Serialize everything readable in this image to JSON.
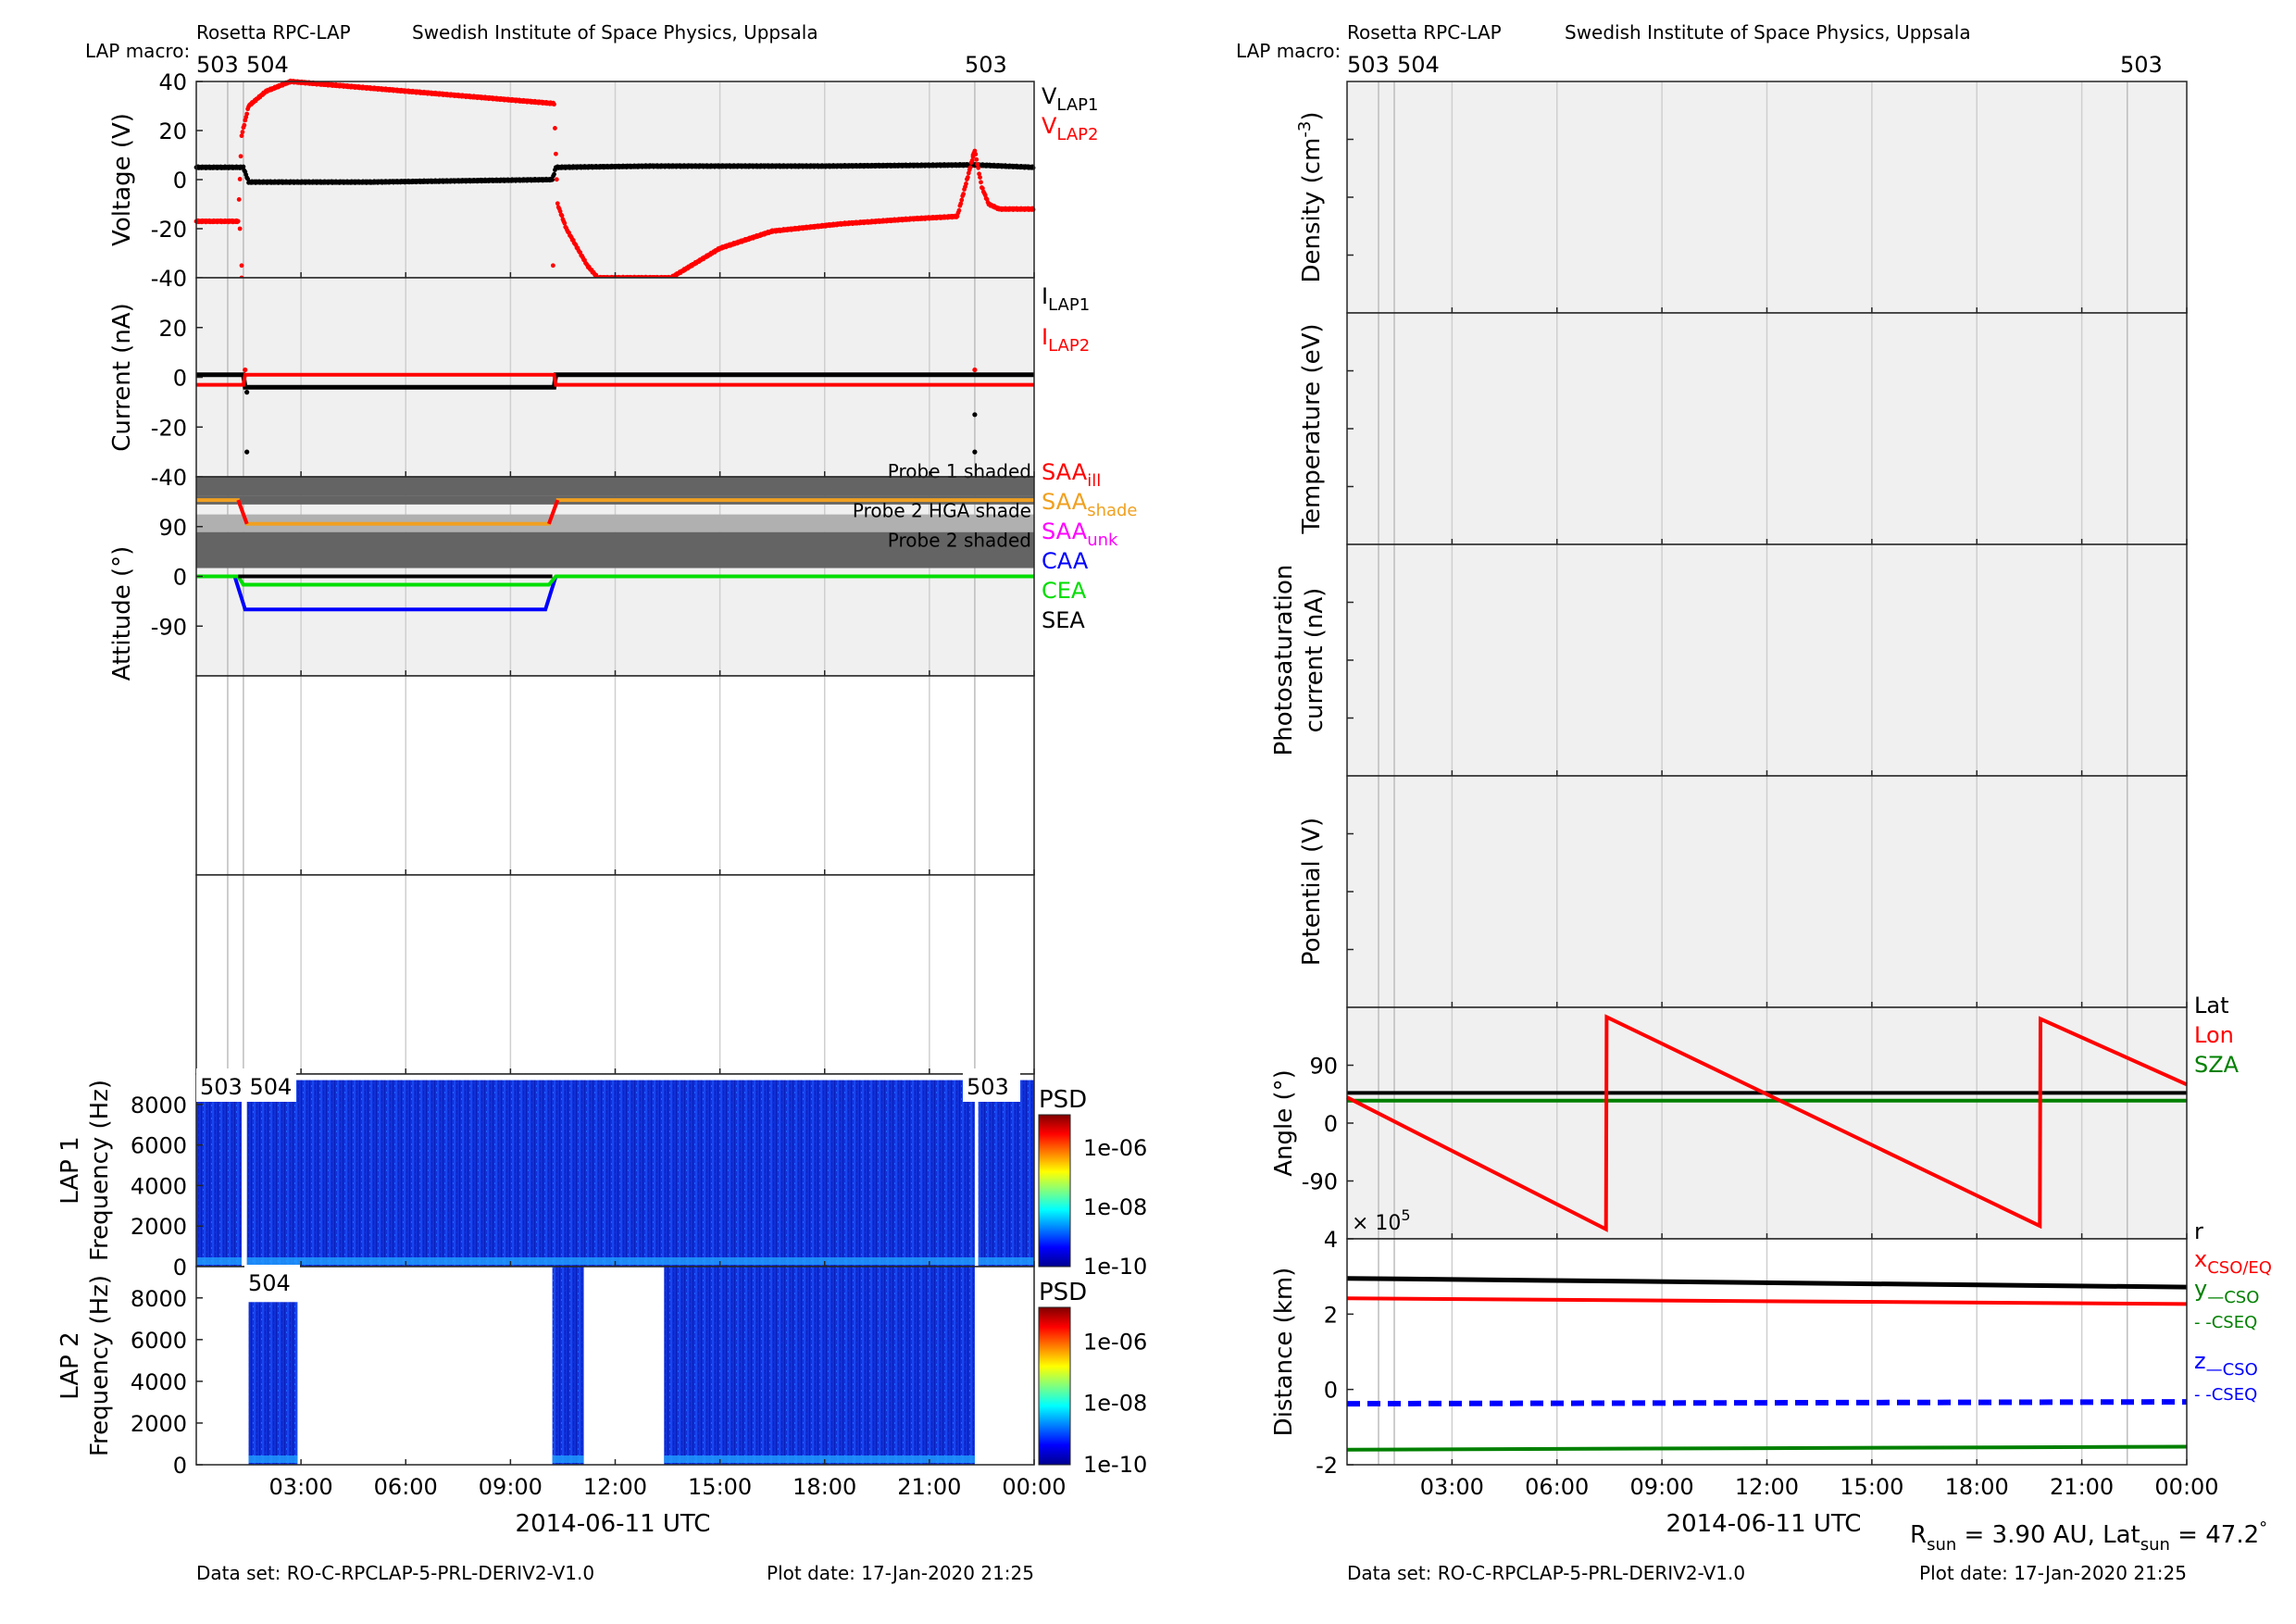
{
  "header": {
    "instrument": "Rosetta RPC-LAP",
    "institute": "Swedish Institute of Space Physics, Uppsala",
    "macro_label": "LAP macro:"
  },
  "macros": {
    "left_top": [
      "503",
      "504",
      "503"
    ],
    "right_top": [
      "503",
      "504",
      "503"
    ],
    "lap1_spec": [
      "503 504",
      "503"
    ],
    "lap2_spec": [
      "504"
    ]
  },
  "time_axis": {
    "ticks": [
      "03:00",
      "06:00",
      "09:00",
      "12:00",
      "15:00",
      "18:00",
      "21:00",
      "00:00"
    ],
    "label": "2014-06-11 UTC"
  },
  "footer": {
    "dataset": "Data set: RO-C-RPCLAP-5-PRL-DERIV2-V1.0",
    "plot_date": "Plot date: 17-Jan-2020 21:25",
    "rsun_parts": [
      "R",
      "sun",
      " = 3.90 AU, Lat",
      "sun",
      " = 47.2",
      "°"
    ]
  },
  "colors": {
    "panel_bg": "#f0f0f0",
    "lap1": "#000000",
    "lap2": "#ff0000",
    "saa_shade": "#f0a020",
    "saa_unk": "#ff00ff",
    "caa": "#0000ff",
    "cea": "#00dd00",
    "cso_y": "#008000",
    "shade_dark": "#646464",
    "shade_mid": "#b0b0b0"
  },
  "chart_data": [
    {
      "id": "voltage",
      "type": "scatter",
      "ylabel": "Voltage (V)",
      "ylim": [
        -40,
        40
      ],
      "yticks": [
        "40",
        "20",
        "0",
        "-20",
        "-40"
      ],
      "legend": [
        {
          "main": "V",
          "sub": "LAP1",
          "color": "#000000"
        },
        {
          "main": "V",
          "sub": "LAP2",
          "color": "#ff0000"
        }
      ],
      "series": [
        {
          "name": "VLAP1",
          "x_hours": [
            0,
            1.35,
            1.5,
            5.0,
            10.2,
            10.3,
            13,
            18,
            22.3,
            24
          ],
          "y": [
            5,
            5,
            -1,
            -1,
            0,
            5,
            5.5,
            5.5,
            6,
            5
          ]
        },
        {
          "name": "VLAP2",
          "x_hours": [
            0,
            1.2,
            1.3,
            1.5,
            2.0,
            2.7,
            10.25,
            10.35,
            10.6,
            11.2,
            11.5,
            13.6,
            15.0,
            16.5,
            18.5,
            20.5,
            21.8,
            22.3,
            22.5,
            22.7,
            23.0,
            24.0
          ],
          "y": [
            -17,
            -17,
            18,
            30,
            36,
            40,
            31,
            -10,
            -20,
            -35,
            -40,
            -40,
            -28,
            -21,
            -18,
            -16,
            -15,
            12,
            -3,
            -10,
            -12,
            -12
          ]
        }
      ]
    },
    {
      "id": "current",
      "type": "scatter",
      "ylabel": "Current (nA)",
      "ylim": [
        -40,
        40
      ],
      "yticks": [
        "20",
        "0",
        "-20",
        "-40"
      ],
      "legend": [
        {
          "main": "I",
          "sub": "LAP1",
          "color": "#000000"
        },
        {
          "main": "I",
          "sub": "LAP2",
          "color": "#ff0000"
        }
      ],
      "series": [
        {
          "name": "ILAP1",
          "x_hours": [
            0,
            1.35,
            1.4,
            10.25,
            10.3,
            24
          ],
          "y": [
            1,
            1,
            -4,
            -4,
            1,
            1
          ]
        },
        {
          "name": "ILAP2",
          "x_hours": [
            0,
            1.35,
            1.4,
            10.25,
            10.3,
            24
          ],
          "y": [
            -3,
            -3,
            1,
            1,
            -3,
            -3
          ]
        }
      ]
    },
    {
      "id": "attitude",
      "type": "line",
      "ylabel": "Attitude (°)",
      "yticks": [
        "90",
        "0",
        "-90"
      ],
      "shade_labels": [
        "Probe 1 shaded",
        "Probe 2 HGA shade",
        "Probe 2 shaded"
      ],
      "legend": [
        {
          "main": "SAA",
          "sub": "ill",
          "color": "#ff0000"
        },
        {
          "main": "SAA",
          "sub": "shade",
          "color": "#f0a020"
        },
        {
          "main": "SAA",
          "sub": "unk",
          "color": "#ff00ff"
        },
        {
          "main": "CAA",
          "sub": "",
          "color": "#0000ff"
        },
        {
          "main": "CEA",
          "sub": "",
          "color": "#00dd00"
        },
        {
          "main": "SEA",
          "sub": "",
          "color": "#000000"
        }
      ],
      "series": [
        {
          "name": "SAA",
          "x_hours": [
            0,
            1.2,
            1.45,
            10.1,
            10.35,
            24
          ],
          "y": [
            138,
            138,
            95,
            95,
            138,
            138
          ]
        },
        {
          "name": "CAA",
          "x_hours": [
            1.1,
            1.4,
            10.0,
            10.3
          ],
          "y": [
            0,
            -60,
            -60,
            0
          ]
        },
        {
          "name": "CEA",
          "x_hours": [
            0,
            1.2,
            1.35,
            10.1,
            10.3,
            24
          ],
          "y": [
            0,
            0,
            -15,
            -15,
            0,
            0
          ]
        },
        {
          "name": "SEA",
          "x_hours": [
            1.2,
            10.2
          ],
          "y": [
            0,
            0
          ]
        }
      ]
    },
    {
      "id": "lap1_psd",
      "type": "heatmap",
      "panel_label": "LAP 1",
      "ylabel": "Frequency (Hz)",
      "yticks": [
        "8000",
        "6000",
        "4000",
        "2000",
        "0"
      ],
      "colorbar": {
        "title": "PSD",
        "ticks": [
          "1e-06",
          "1e-08",
          "1e-10"
        ]
      },
      "coverage_hours": [
        [
          0,
          1.3
        ],
        [
          1.45,
          22.3
        ],
        [
          22.4,
          24
        ]
      ]
    },
    {
      "id": "lap2_psd",
      "type": "heatmap",
      "panel_label": "LAP 2",
      "ylabel": "Frequency (Hz)",
      "yticks": [
        "8000",
        "6000",
        "4000",
        "2000",
        "0"
      ],
      "colorbar": {
        "title": "PSD",
        "ticks": [
          "1e-06",
          "1e-08",
          "1e-10"
        ]
      },
      "coverage_hours": [
        [
          1.5,
          2.9
        ],
        [
          10.2,
          11.1
        ],
        [
          13.4,
          22.3
        ]
      ]
    },
    {
      "id": "density",
      "type": "line",
      "ylabel": "Density (cm",
      "ylabel_sup": "-3",
      "ylabel_end": ")",
      "series": []
    },
    {
      "id": "temperature",
      "type": "line",
      "ylabel": "Temperature (eV)",
      "series": []
    },
    {
      "id": "photosat",
      "type": "line",
      "ylabel": [
        "Photosaturation",
        "current (nA)"
      ],
      "series": []
    },
    {
      "id": "potential",
      "type": "line",
      "ylabel": "Potential (V)",
      "series": []
    },
    {
      "id": "angle",
      "type": "line",
      "ylabel": "Angle (°)",
      "ylim": [
        -180,
        180
      ],
      "yticks": [
        "90",
        "0",
        "-90"
      ],
      "legend": [
        {
          "main": "Lat",
          "color": "#000000"
        },
        {
          "main": "Lon",
          "color": "#ff0000"
        },
        {
          "main": "SZA",
          "color": "#008000"
        }
      ],
      "series": [
        {
          "name": "Lat",
          "x_hours": [
            0,
            24
          ],
          "y": [
            47,
            47
          ]
        },
        {
          "name": "Lon",
          "x_hours": [
            0,
            7.4,
            7.42,
            19.8,
            19.82,
            24
          ],
          "y": [
            40,
            -165,
            165,
            -160,
            162,
            60
          ]
        },
        {
          "name": "SZA",
          "x_hours": [
            0,
            24
          ],
          "y": [
            35,
            35
          ]
        }
      ]
    },
    {
      "id": "distance",
      "type": "line",
      "ylabel": "Distance (km)",
      "ylim": [
        -2,
        4
      ],
      "yticks": [
        "4",
        "2",
        "0",
        "-2"
      ],
      "exponent": "5",
      "exponent_prefix": "× 10",
      "legend": [
        {
          "main": "r",
          "sub": "",
          "color": "#000000"
        },
        {
          "main": "x",
          "sub": "CSO/EQ",
          "color": "#ff0000"
        },
        {
          "main": "y",
          "sub": "—CSO",
          "color": "#008000"
        },
        {
          "main": "",
          "sub": "- -CSEQ",
          "color": "#008000"
        },
        {
          "main": "z",
          "sub": "—CSO",
          "color": "#0000ff"
        },
        {
          "main": "",
          "sub": "- -CSEQ",
          "color": "#0000ff"
        }
      ],
      "series": [
        {
          "name": "r",
          "x_hours": [
            0,
            24
          ],
          "y": [
            2.95,
            2.72
          ]
        },
        {
          "name": "x",
          "x_hours": [
            0,
            24
          ],
          "y": [
            2.42,
            2.27
          ]
        },
        {
          "name": "y",
          "x_hours": [
            0,
            24
          ],
          "y": [
            -1.6,
            -1.52
          ]
        },
        {
          "name": "z",
          "x_hours": [
            0,
            24
          ],
          "y": [
            -0.38,
            -0.33
          ]
        }
      ]
    }
  ]
}
